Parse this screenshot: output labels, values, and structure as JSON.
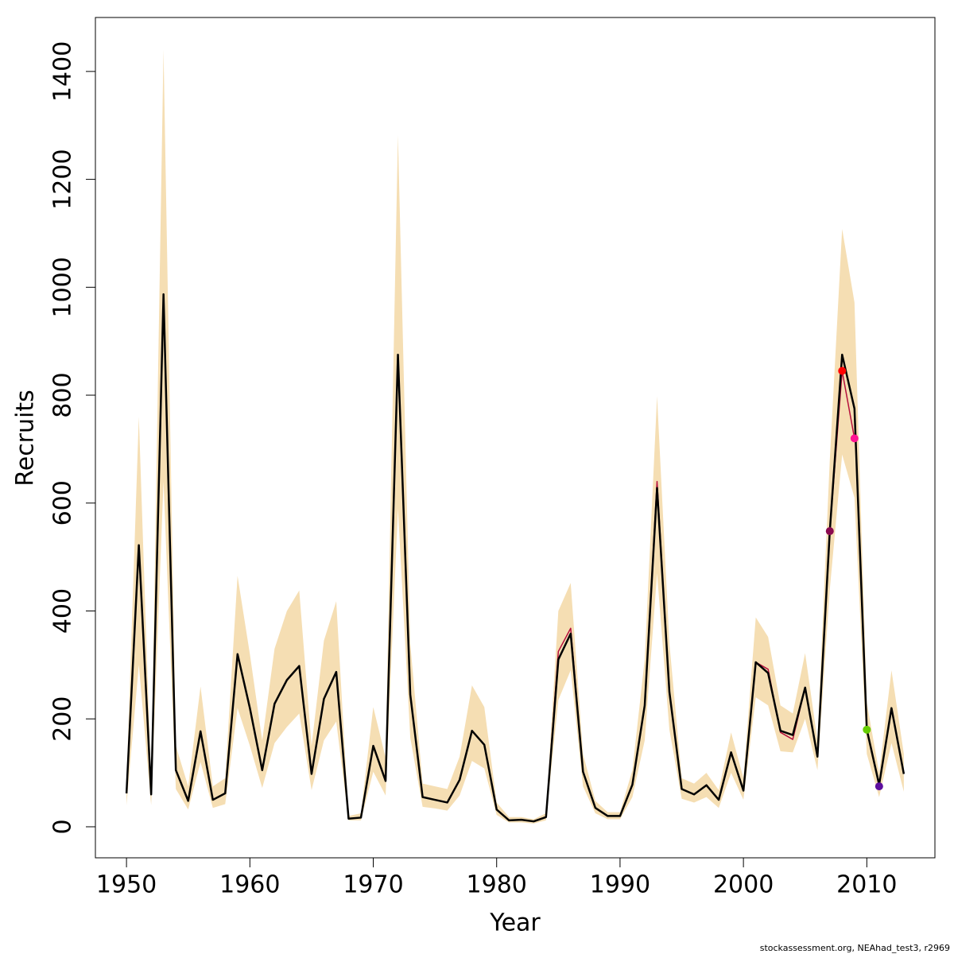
{
  "chart_data": {
    "type": "line",
    "xlabel": "Year",
    "ylabel": "Recruits",
    "footnote": "stockassessment.org, NEAhad_test3, r2969",
    "x": [
      1950,
      1951,
      1952,
      1953,
      1954,
      1955,
      1956,
      1957,
      1958,
      1959,
      1960,
      1961,
      1962,
      1963,
      1964,
      1965,
      1966,
      1967,
      1968,
      1969,
      1970,
      1971,
      1972,
      1973,
      1974,
      1975,
      1976,
      1977,
      1978,
      1979,
      1980,
      1981,
      1982,
      1983,
      1984,
      1985,
      1986,
      1987,
      1988,
      1989,
      1990,
      1991,
      1992,
      1993,
      1994,
      1995,
      1996,
      1997,
      1998,
      1999,
      2000,
      2001,
      2002,
      2003,
      2004,
      2005,
      2006,
      2007,
      2008,
      2009,
      2010,
      2011,
      2012,
      2013
    ],
    "band": {
      "color": "#f5deb3",
      "upper": [
        80,
        760,
        80,
        1440,
        150,
        75,
        260,
        75,
        90,
        465,
        320,
        160,
        330,
        400,
        438,
        150,
        345,
        418,
        20,
        25,
        222,
        128,
        1282,
        340,
        80,
        75,
        70,
        130,
        262,
        222,
        45,
        18,
        18,
        14,
        25,
        400,
        452,
        135,
        48,
        27,
        27,
        105,
        310,
        798,
        340,
        90,
        80,
        100,
        68,
        175,
        90,
        388,
        352,
        225,
        210,
        322,
        160,
        680,
        1108,
        972,
        230,
        100,
        290,
        135
      ],
      "lower": [
        40,
        300,
        40,
        640,
        70,
        32,
        120,
        35,
        42,
        220,
        150,
        72,
        155,
        185,
        210,
        68,
        160,
        195,
        12,
        12,
        102,
        58,
        590,
        165,
        37,
        34,
        30,
        58,
        122,
        108,
        22,
        8,
        8,
        6,
        12,
        235,
        290,
        75,
        25,
        14,
        14,
        55,
        160,
        470,
        180,
        52,
        45,
        55,
        35,
        100,
        50,
        240,
        225,
        140,
        138,
        200,
        105,
        440,
        690,
        610,
        135,
        55,
        155,
        65
      ]
    },
    "series": [
      {
        "color": "#b5103c",
        "values": [
          62,
          522,
          60,
          987,
          105,
          48,
          177,
          50,
          62,
          320,
          220,
          105,
          228,
          272,
          298,
          98,
          237,
          287,
          15,
          17,
          150,
          85,
          875,
          245,
          55,
          50,
          45,
          87,
          178,
          152,
          32,
          12,
          13,
          10,
          18,
          325,
          368,
          102,
          35,
          20,
          20,
          78,
          225,
          640,
          250,
          70,
          60,
          77,
          50,
          138,
          67,
          305,
          292,
          175,
          162,
          258,
          130,
          548,
          845,
          720,
          null,
          null,
          null,
          null
        ]
      },
      {
        "color": "#000000",
        "values": [
          62,
          522,
          60,
          987,
          105,
          48,
          177,
          50,
          62,
          320,
          220,
          105,
          228,
          272,
          298,
          98,
          237,
          287,
          15,
          17,
          150,
          85,
          875,
          245,
          55,
          50,
          45,
          87,
          178,
          152,
          32,
          12,
          13,
          10,
          18,
          310,
          358,
          102,
          35,
          20,
          20,
          78,
          225,
          628,
          250,
          70,
          60,
          77,
          50,
          138,
          67,
          305,
          285,
          178,
          170,
          258,
          130,
          548,
          875,
          775,
          180,
          78,
          220,
          98
        ]
      }
    ],
    "points": [
      {
        "x": 2007,
        "y": 548,
        "color": "#8b0a50"
      },
      {
        "x": 2008,
        "y": 845,
        "color": "#ff0000"
      },
      {
        "x": 2009,
        "y": 720,
        "color": "#ff1493"
      },
      {
        "x": 2010,
        "y": 180,
        "color": "#66cd00"
      },
      {
        "x": 2011,
        "y": 75,
        "color": "#5d0f9e"
      }
    ],
    "xlim": [
      1947.48,
      2015.52
    ],
    "ylim": [
      -57.5,
      1500
    ],
    "xticks": [
      1950,
      1960,
      1970,
      1980,
      1990,
      2000,
      2010
    ],
    "yticks": [
      0,
      200,
      400,
      600,
      800,
      1000,
      1200,
      1400
    ]
  }
}
